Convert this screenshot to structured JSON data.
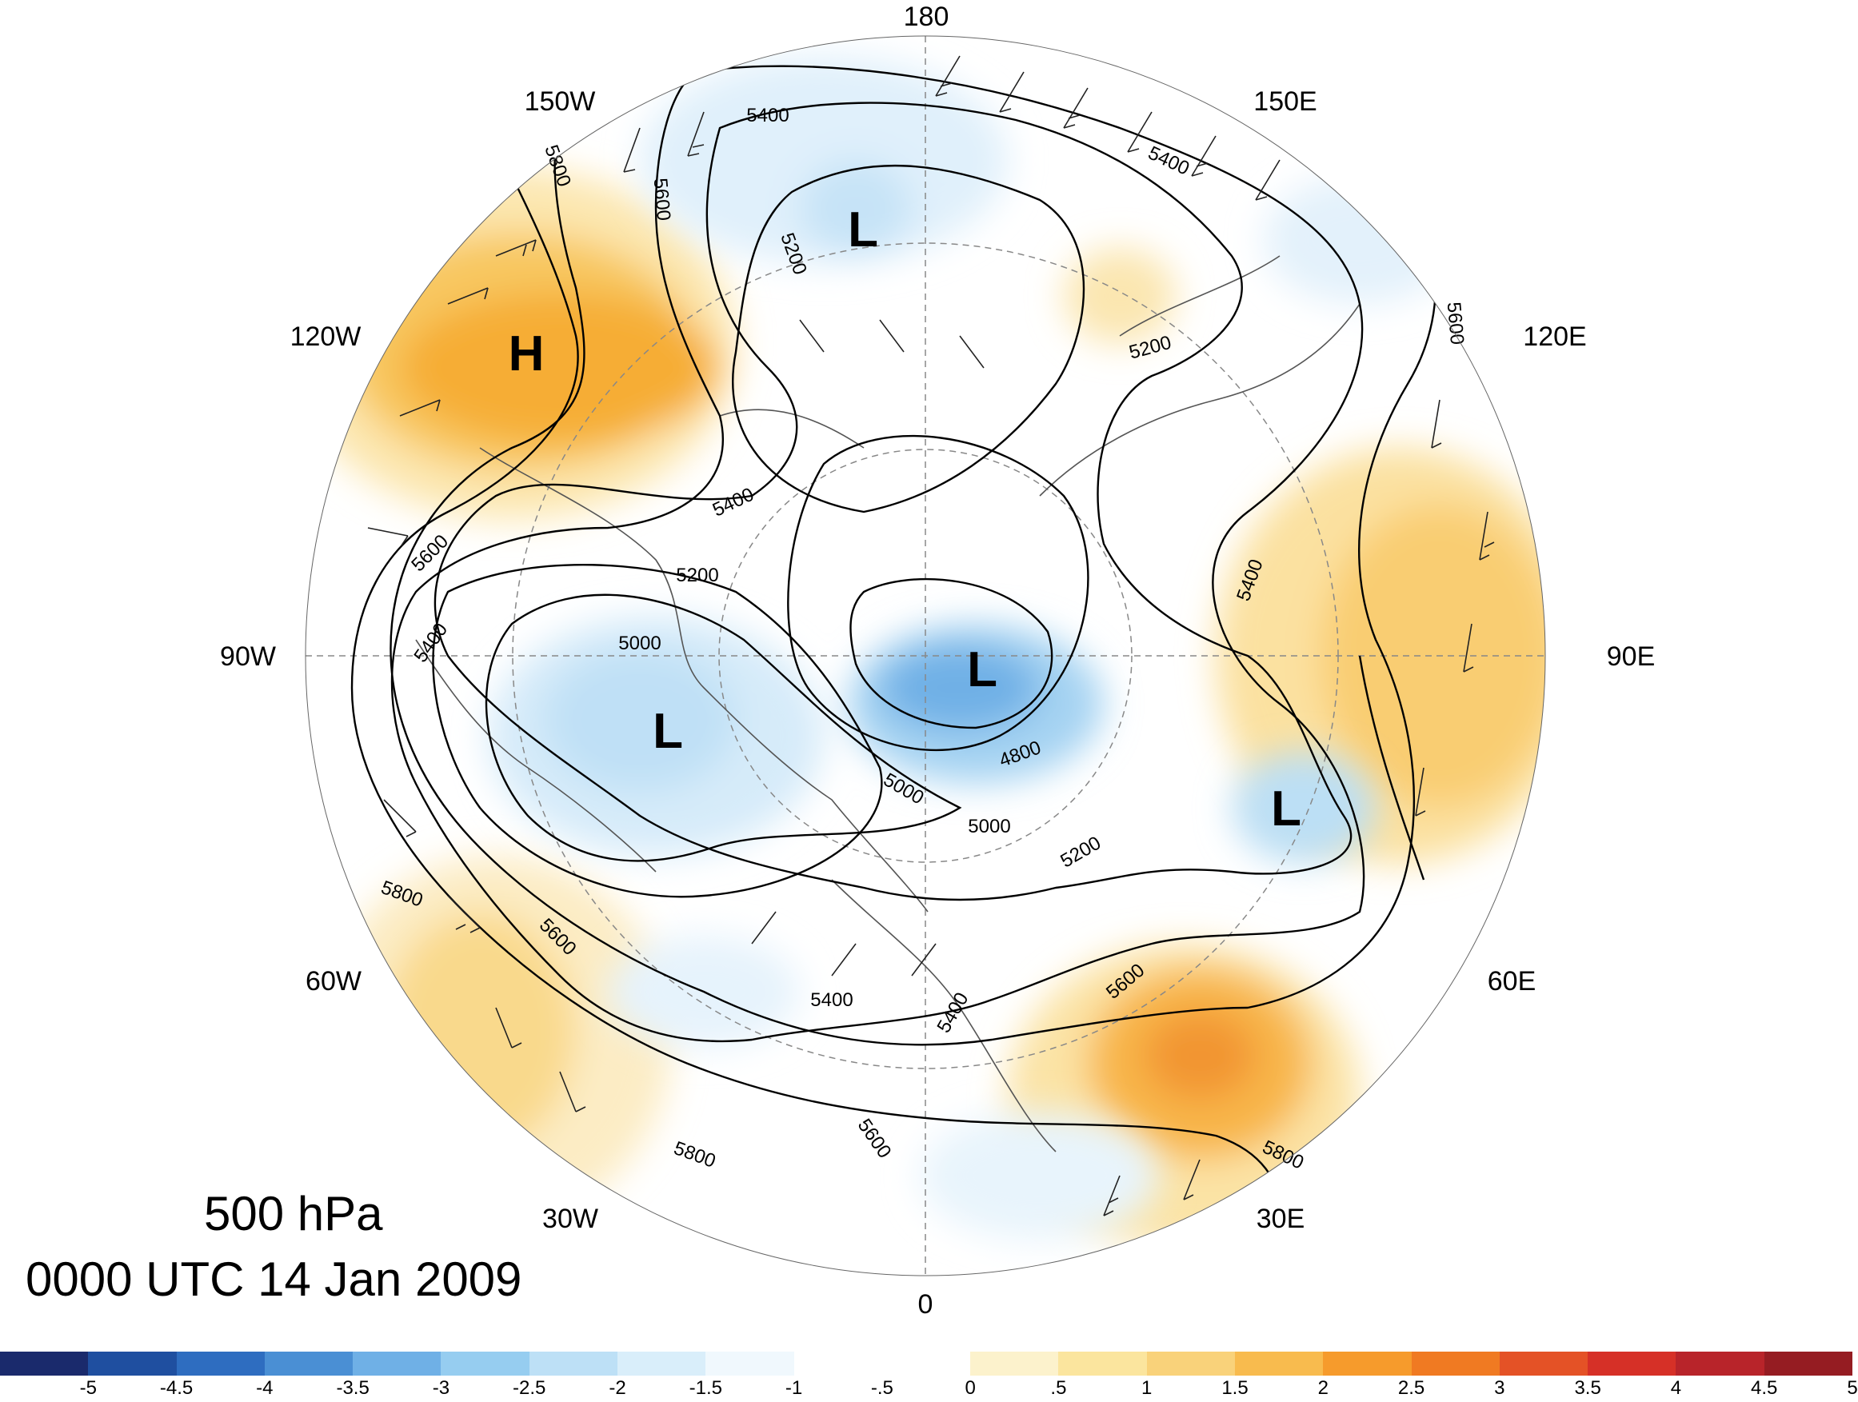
{
  "title": {
    "level": "500 hPa",
    "time": "0000 UTC 14 Jan 2009"
  },
  "longitude_labels": [
    "180",
    "150E",
    "120E",
    "90E",
    "60E",
    "30E",
    "0",
    "30W",
    "60W",
    "90W",
    "120W",
    "150W"
  ],
  "pressure_centers": [
    {
      "id": "high-pacific",
      "label": "H"
    },
    {
      "id": "low-bering",
      "label": "L"
    },
    {
      "id": "low-canada",
      "label": "L"
    },
    {
      "id": "low-polar",
      "label": "L"
    },
    {
      "id": "low-siberia",
      "label": "L"
    }
  ],
  "contour_labels": [
    "5400",
    "5400",
    "5800",
    "5600",
    "5200",
    "5200",
    "5600",
    "5400",
    "5600",
    "5400",
    "5200",
    "5000",
    "5400",
    "4800",
    "5000",
    "5000",
    "5200",
    "5800",
    "5600",
    "5400",
    "5400",
    "5600",
    "5800",
    "5600",
    "5800"
  ],
  "colorbar": {
    "colors": [
      "#1a2a6c",
      "#1f4fa0",
      "#2e6dc0",
      "#4a8fd4",
      "#6fb0e6",
      "#96cdf0",
      "#bde0f6",
      "#d9eefa",
      "#f0f8fd",
      "#ffffff",
      "#ffffff",
      "#fcf2cc",
      "#fbe59e",
      "#f9d27a",
      "#f8bb4e",
      "#f69b2c",
      "#f07a22",
      "#e45226",
      "#d63027",
      "#b8242a",
      "#951c22"
    ],
    "labels": [
      "-5",
      "-4.5",
      "-4",
      "-3.5",
      "-3",
      "-2.5",
      "-2",
      "-1.5",
      "-1",
      "-.5",
      "0",
      ".5",
      "1",
      "1.5",
      "2",
      "2.5",
      "3",
      "3.5",
      "4",
      "4.5",
      "5"
    ]
  }
}
